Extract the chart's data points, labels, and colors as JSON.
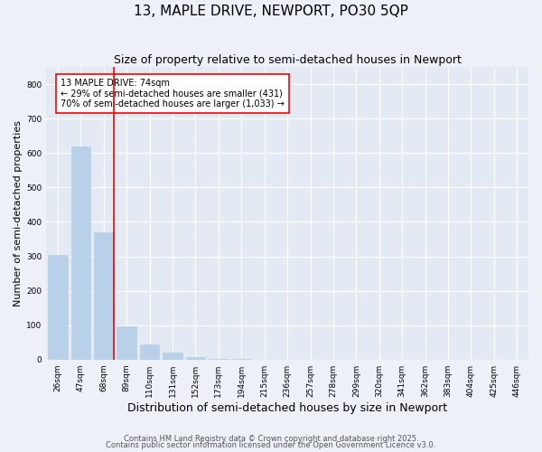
{
  "title": "13, MAPLE DRIVE, NEWPORT, PO30 5QP",
  "subtitle": "Size of property relative to semi-detached houses in Newport",
  "xlabel": "Distribution of semi-detached houses by size in Newport",
  "ylabel": "Number of semi-detached properties",
  "categories": [
    "26sqm",
    "47sqm",
    "68sqm",
    "89sqm",
    "110sqm",
    "131sqm",
    "152sqm",
    "173sqm",
    "194sqm",
    "215sqm",
    "236sqm",
    "257sqm",
    "278sqm",
    "299sqm",
    "320sqm",
    "341sqm",
    "362sqm",
    "383sqm",
    "404sqm",
    "425sqm",
    "446sqm"
  ],
  "values": [
    305,
    620,
    370,
    97,
    43,
    20,
    8,
    3,
    1,
    0,
    0,
    0,
    0,
    0,
    0,
    0,
    0,
    0,
    0,
    0,
    0
  ],
  "bar_color": "#b8d0e8",
  "annotation_text": "13 MAPLE DRIVE: 74sqm\n← 29% of semi-detached houses are smaller (431)\n70% of semi-detached houses are larger (1,033) →",
  "ylim": [
    0,
    850
  ],
  "yticks": [
    0,
    100,
    200,
    300,
    400,
    500,
    600,
    700,
    800
  ],
  "background_color": "#edf1f7",
  "plot_background": "#e4eaf4",
  "grid_color": "#ffffff",
  "footer_line1": "Contains HM Land Registry data © Crown copyright and database right 2025.",
  "footer_line2": "Contains public sector information licensed under the Open Government Licence v3.0.",
  "title_fontsize": 11,
  "subtitle_fontsize": 9,
  "axis_label_fontsize": 8,
  "tick_fontsize": 6.5,
  "annotation_fontsize": 7,
  "footer_fontsize": 6,
  "red_line_index": 2,
  "bar_width": 0.85
}
